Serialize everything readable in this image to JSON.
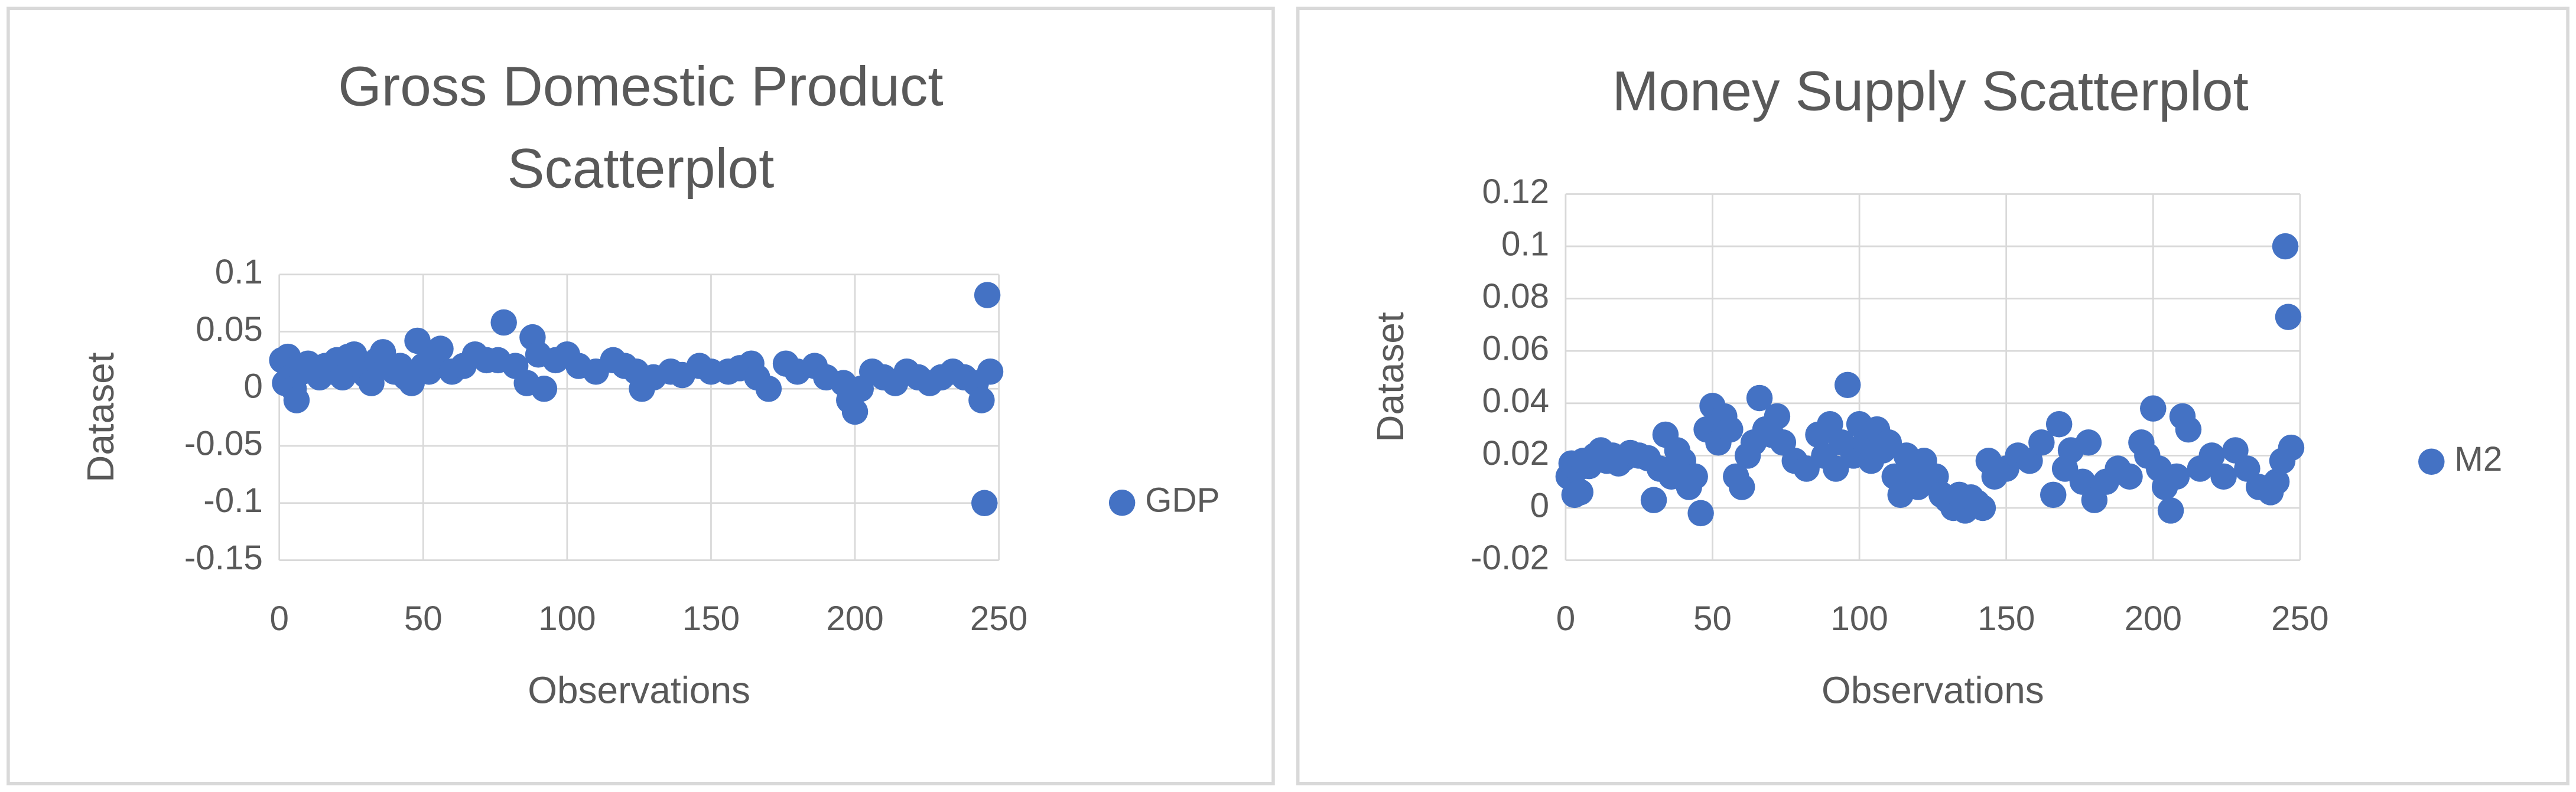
{
  "chart_data": [
    {
      "type": "scatter",
      "title": "Gross Domestic Product Scatterplot",
      "x_label": "Observations",
      "y_label": "Dataset",
      "xlim": [
        0,
        250
      ],
      "xticks": [
        0,
        50,
        100,
        150,
        200,
        250
      ],
      "ylim": [
        -0.15,
        0.1
      ],
      "yticks": [
        -0.15,
        -0.1,
        -0.05,
        0,
        0.05,
        0.1
      ],
      "grid": true,
      "legend": "right",
      "x": [
        1,
        2,
        3,
        4,
        5,
        6,
        7,
        8,
        10,
        12,
        14,
        16,
        18,
        20,
        22,
        24,
        26,
        28,
        30,
        32,
        34,
        36,
        38,
        40,
        42,
        44,
        46,
        48,
        50,
        52,
        54,
        56,
        60,
        64,
        68,
        72,
        76,
        78,
        82,
        86,
        88,
        90,
        92,
        96,
        100,
        104,
        110,
        116,
        120,
        124,
        126,
        130,
        136,
        140,
        146,
        150,
        156,
        160,
        164,
        166,
        170,
        176,
        180,
        186,
        190,
        196,
        198,
        200,
        202,
        206,
        210,
        214,
        218,
        222,
        226,
        230,
        234,
        238,
        242,
        244,
        245,
        246,
        247
      ],
      "series": [
        {
          "name": "GDP",
          "color": "#4472c4",
          "values": [
            0.025,
            0.005,
            0.028,
            0.01,
            0,
            -0.01,
            0.02,
            0.015,
            0.022,
            0.018,
            0.01,
            0.02,
            0.015,
            0.025,
            0.01,
            0.028,
            0.03,
            0.02,
            0.012,
            0.005,
            0.025,
            0.032,
            0.02,
            0.015,
            0.02,
            0.01,
            0.005,
            0.042,
            0.02,
            0.015,
            0.03,
            0.035,
            0.015,
            0.02,
            0.03,
            0.025,
            0.025,
            0.058,
            0.02,
            0.005,
            0.045,
            0.03,
            0,
            0.025,
            0.03,
            0.02,
            0.015,
            0.025,
            0.02,
            0.015,
            0,
            0.01,
            0.015,
            0.012,
            0.02,
            0.015,
            0.015,
            0.018,
            0.022,
            0.01,
            0,
            0.022,
            0.015,
            0.02,
            0.01,
            0.005,
            -0.01,
            -0.02,
            0,
            0.015,
            0.01,
            0.005,
            0.015,
            0.01,
            0.005,
            0.01,
            0.015,
            0.01,
            0.005,
            -0.01,
            -0.1,
            0.082,
            0.015
          ]
        }
      ]
    },
    {
      "type": "scatter",
      "title": "Money Supply Scatterplot",
      "x_label": "Observations",
      "y_label": "Dataset",
      "xlim": [
        0,
        250
      ],
      "xticks": [
        0,
        50,
        100,
        150,
        200,
        250
      ],
      "ylim": [
        -0.02,
        0.12
      ],
      "yticks": [
        -0.02,
        0,
        0.02,
        0.04,
        0.06,
        0.08,
        0.1,
        0.12
      ],
      "grid": true,
      "legend": "right",
      "x": [
        1,
        2,
        3,
        4,
        5,
        6,
        8,
        10,
        12,
        14,
        16,
        18,
        20,
        22,
        25,
        28,
        30,
        32,
        34,
        36,
        38,
        40,
        42,
        44,
        46,
        48,
        50,
        52,
        54,
        56,
        58,
        60,
        62,
        64,
        66,
        68,
        70,
        72,
        74,
        78,
        82,
        86,
        88,
        90,
        92,
        94,
        96,
        98,
        100,
        102,
        104,
        106,
        108,
        110,
        112,
        114,
        116,
        118,
        120,
        122,
        124,
        126,
        128,
        130,
        132,
        134,
        136,
        138,
        140,
        142,
        144,
        146,
        150,
        154,
        158,
        162,
        166,
        168,
        170,
        172,
        176,
        178,
        180,
        184,
        188,
        192,
        196,
        198,
        200,
        202,
        204,
        206,
        208,
        210,
        212,
        216,
        220,
        224,
        228,
        232,
        236,
        240,
        242,
        244,
        245,
        246,
        247
      ],
      "series": [
        {
          "name": "M2",
          "color": "#4472c4",
          "values": [
            0.012,
            0.017,
            0.005,
            0.015,
            0.006,
            0.018,
            0.016,
            0.02,
            0.022,
            0.018,
            0.02,
            0.017,
            0.019,
            0.021,
            0.02,
            0.019,
            0.003,
            0.015,
            0.028,
            0.012,
            0.022,
            0.018,
            0.008,
            0.012,
            -0.002,
            0.03,
            0.039,
            0.025,
            0.035,
            0.03,
            0.012,
            0.008,
            0.02,
            0.025,
            0.042,
            0.03,
            0.028,
            0.035,
            0.025,
            0.018,
            0.015,
            0.028,
            0.02,
            0.032,
            0.015,
            0.025,
            0.047,
            0.02,
            0.032,
            0.025,
            0.018,
            0.03,
            0.022,
            0.025,
            0.012,
            0.005,
            0.02,
            0.015,
            0.008,
            0.018,
            0.01,
            0.012,
            0.005,
            0.003,
            0,
            0.005,
            -0.001,
            0.004,
            0.002,
            0,
            0.018,
            0.012,
            0.015,
            0.02,
            0.018,
            0.025,
            0.005,
            0.032,
            0.015,
            0.022,
            0.01,
            0.025,
            0.003,
            0.01,
            0.015,
            0.012,
            0.025,
            0.02,
            0.038,
            0.015,
            0.008,
            -0.001,
            0.012,
            0.035,
            0.03,
            0.015,
            0.02,
            0.012,
            0.022,
            0.015,
            0.008,
            0.006,
            0.01,
            0.018,
            0.1,
            0.073,
            0.023
          ]
        }
      ]
    }
  ]
}
